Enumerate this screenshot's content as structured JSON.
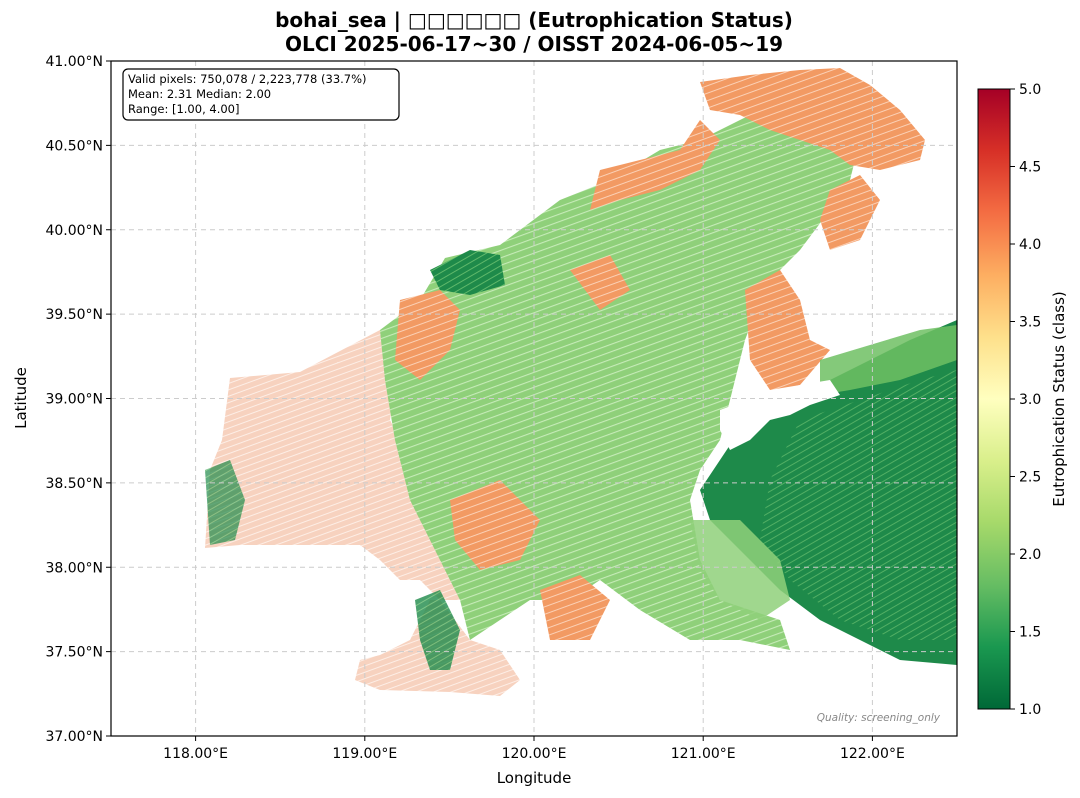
{
  "chart_data": {
    "type": "heatmap",
    "title_line1": "bohai_sea | □□□□□□ (Eutrophication Status)",
    "title_line2": "OLCI 2025-06-17~30 / OISST 2024-06-05~19",
    "xlabel": "Longitude",
    "ylabel": "Latitude",
    "xlim": [
      117.5,
      122.5
    ],
    "ylim": [
      37.0,
      41.0
    ],
    "x_ticks": [
      118.0,
      119.0,
      120.0,
      121.0,
      122.0
    ],
    "x_tick_labels": [
      "118.00°E",
      "119.00°E",
      "120.00°E",
      "121.00°E",
      "122.00°E"
    ],
    "y_ticks": [
      37.0,
      37.5,
      38.0,
      38.5,
      39.0,
      39.5,
      40.0,
      40.5,
      41.0
    ],
    "y_tick_labels": [
      "37.00°N",
      "37.50°N",
      "38.00°N",
      "38.50°N",
      "39.00°N",
      "39.50°N",
      "40.00°N",
      "40.50°N",
      "41.00°N"
    ],
    "grid": true,
    "stats": {
      "line1": "Valid pixels: 750,078 / 2,223,778 (33.7%)",
      "line2": "Mean: 2.31  Median: 2.00",
      "line3": "Range: [1.00, 4.00]",
      "valid_pixels": 750078,
      "total_pixels": 2223778,
      "valid_percent": 33.7,
      "mean": 2.31,
      "median": 2.0,
      "range": [
        1.0,
        4.0
      ]
    },
    "quality_note": "Quality: screening_only",
    "colorbar": {
      "label": "Eutrophication Status (class)",
      "vmin": 1.0,
      "vmax": 5.0,
      "ticks": [
        1.0,
        1.5,
        2.0,
        2.5,
        3.0,
        3.5,
        4.0,
        4.5,
        5.0
      ],
      "tick_labels": [
        "1.0",
        "1.5",
        "2.0",
        "2.5",
        "3.0",
        "3.5",
        "4.0",
        "4.5",
        "5.0"
      ],
      "colormap": "RdYlGn_r",
      "stops": [
        "#006837",
        "#1a9850",
        "#66bd63",
        "#a6d96a",
        "#d9ef8b",
        "#ffffbf",
        "#fee08b",
        "#fdae61",
        "#f46d43",
        "#d73027",
        "#a50026"
      ]
    },
    "colors": {
      "dominant_class_2": "#8fd07a",
      "offshore_class_4": "#f08a4b",
      "low_class_1": "#1e8a4a",
      "faint_class_3": "#f5c2a8"
    }
  }
}
